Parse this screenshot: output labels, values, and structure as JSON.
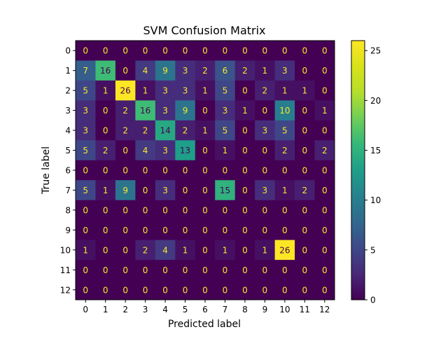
{
  "chart_data": {
    "type": "heatmap",
    "title": "SVM Confusion Matrix",
    "xlabel": "Predicted label",
    "ylabel": "True label",
    "x_ticks": [
      "0",
      "1",
      "2",
      "3",
      "4",
      "5",
      "6",
      "7",
      "8",
      "9",
      "10",
      "11",
      "12"
    ],
    "y_ticks": [
      "0",
      "1",
      "2",
      "3",
      "4",
      "5",
      "6",
      "7",
      "8",
      "9",
      "10",
      "11",
      "12"
    ],
    "matrix": [
      [
        0,
        0,
        0,
        0,
        0,
        0,
        0,
        0,
        0,
        0,
        0,
        0,
        0
      ],
      [
        7,
        16,
        0,
        4,
        9,
        3,
        2,
        6,
        2,
        1,
        3,
        0,
        0
      ],
      [
        5,
        1,
        26,
        1,
        3,
        3,
        1,
        5,
        0,
        2,
        1,
        1,
        0
      ],
      [
        3,
        0,
        2,
        16,
        3,
        9,
        0,
        3,
        1,
        0,
        10,
        0,
        1
      ],
      [
        3,
        0,
        2,
        2,
        14,
        2,
        1,
        5,
        0,
        3,
        5,
        0,
        0
      ],
      [
        5,
        2,
        0,
        4,
        3,
        13,
        0,
        1,
        0,
        0,
        2,
        0,
        2
      ],
      [
        0,
        0,
        0,
        0,
        0,
        0,
        0,
        0,
        0,
        0,
        0,
        0,
        0
      ],
      [
        5,
        1,
        9,
        0,
        3,
        0,
        0,
        15,
        0,
        3,
        1,
        2,
        0
      ],
      [
        0,
        0,
        0,
        0,
        0,
        0,
        0,
        0,
        0,
        0,
        0,
        0,
        0
      ],
      [
        0,
        0,
        0,
        0,
        0,
        0,
        0,
        0,
        0,
        0,
        0,
        0,
        0
      ],
      [
        1,
        0,
        0,
        2,
        4,
        1,
        0,
        1,
        0,
        1,
        26,
        0,
        0
      ],
      [
        0,
        0,
        0,
        0,
        0,
        0,
        0,
        0,
        0,
        0,
        0,
        0,
        0
      ],
      [
        0,
        0,
        0,
        0,
        0,
        0,
        0,
        0,
        0,
        0,
        0,
        0,
        0
      ]
    ],
    "colormap": "viridis",
    "vmin": 0,
    "vmax": 26,
    "colorbar_ticks": [
      0,
      5,
      10,
      15,
      20,
      25
    ],
    "text_color_dark": "#440154",
    "text_color_light": "#fde725"
  }
}
